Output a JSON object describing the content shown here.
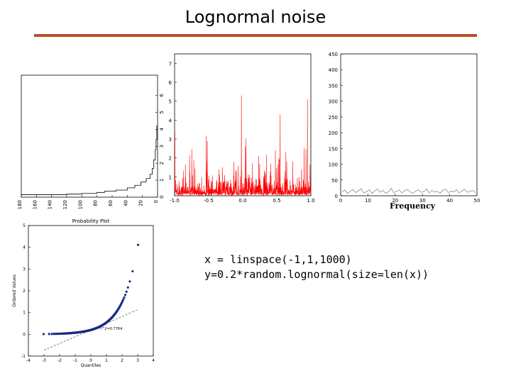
{
  "page": {
    "title": "Lognormal noise"
  },
  "code_lines": [
    "x = linspace(-1,1,1000)",
    "y=0.2*random.lognormal(size=len(x))"
  ],
  "chart_data": [
    {
      "id": "rotated-histogram",
      "type": "bar",
      "orientation": "rotated",
      "x_ticks": [
        "180",
        "160",
        "140",
        "120",
        "100",
        "80",
        "60",
        "40",
        "20",
        "0"
      ],
      "x_range": [
        180,
        0
      ],
      "y_ticks": [
        "0",
        "1",
        "2",
        "3",
        "4",
        "5",
        "6"
      ],
      "y_range": [
        0,
        7.2
      ],
      "grid": false,
      "color": "#000000",
      "steps": [
        [
          180,
          0.15
        ],
        [
          120,
          0.18
        ],
        [
          100,
          0.22
        ],
        [
          80,
          0.28
        ],
        [
          70,
          0.35
        ],
        [
          55,
          0.42
        ],
        [
          40,
          0.55
        ],
        [
          30,
          0.7
        ],
        [
          22,
          0.9
        ],
        [
          15,
          1.1
        ],
        [
          10,
          1.35
        ],
        [
          7,
          1.7
        ],
        [
          5,
          2.2
        ],
        [
          3,
          2.8
        ],
        [
          2,
          3.4
        ],
        [
          1,
          4.2
        ]
      ]
    },
    {
      "id": "noise-line",
      "type": "line",
      "x_ticks": [
        "-1.0",
        "-0.5",
        "0.0",
        "0.5",
        "1.0"
      ],
      "x_range": [
        -1,
        1
      ],
      "y_ticks": [
        "1",
        "2",
        "3",
        "4",
        "5",
        "6",
        "7"
      ],
      "y_range": [
        0,
        7.5
      ],
      "grid": false,
      "color": "#ff0000",
      "n_points": 1000,
      "spikes": [
        [
          -0.52,
          2.9
        ],
        [
          -0.3,
          1.5
        ],
        [
          -0.13,
          1.8
        ],
        [
          -0.02,
          5.3
        ],
        [
          0.04,
          2.6
        ],
        [
          0.41,
          1.7
        ],
        [
          0.48,
          2.4
        ],
        [
          0.55,
          4.3
        ],
        [
          0.62,
          1.3
        ],
        [
          0.95,
          5.1
        ]
      ]
    },
    {
      "id": "frequency-spectrum",
      "type": "line",
      "x_ticks": [
        "0",
        "10",
        "20",
        "30",
        "40",
        "50"
      ],
      "x_range": [
        0,
        50
      ],
      "y_ticks": [
        "0",
        "50",
        "100",
        "150",
        "200",
        "250",
        "300",
        "350",
        "400",
        "450"
      ],
      "y_range": [
        0,
        450
      ],
      "xlabel": "Frequency",
      "grid": false,
      "color": "#888888",
      "values": [
        12,
        18,
        8,
        14,
        20,
        10,
        16,
        22,
        9,
        13,
        19,
        7,
        15,
        21,
        11,
        17,
        8,
        12,
        24,
        10,
        14,
        18,
        9,
        16,
        20,
        12,
        8,
        15,
        19,
        11,
        13,
        22,
        9,
        17,
        12,
        14,
        8,
        18,
        21,
        10,
        15,
        12,
        19,
        9,
        16,
        20,
        11,
        14,
        17,
        10
      ]
    },
    {
      "id": "probability-plot",
      "type": "scatter",
      "title": "Probability Plot",
      "xlabel": "Quantiles",
      "ylabel": "Ordered Values",
      "x_ticks": [
        "-4",
        "-3",
        "-2",
        "-1",
        "0",
        "1",
        "2",
        "3",
        "4"
      ],
      "x_range": [
        -4,
        4
      ],
      "y_ticks": [
        "-1",
        "0",
        "1",
        "2",
        "3",
        "4",
        "5"
      ],
      "y_range": [
        -1,
        5
      ],
      "grid": false,
      "point_color": "#1c2b8a",
      "fit_color": "#2e8b2e",
      "fit": {
        "slope": 0.31,
        "intercept": 0.2
      },
      "annotation": "r^2=0.7764",
      "n_points": 400
    }
  ]
}
